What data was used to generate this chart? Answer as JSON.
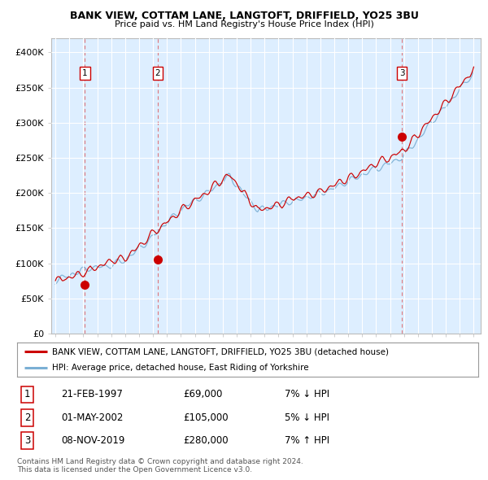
{
  "title1": "BANK VIEW, COTTAM LANE, LANGTOFT, DRIFFIELD, YO25 3BU",
  "title2": "Price paid vs. HM Land Registry's House Price Index (HPI)",
  "bg_color": "#ddeeff",
  "fig_color": "#ffffff",
  "grid_color": "#ffffff",
  "ylim": [
    0,
    420000
  ],
  "yticks": [
    0,
    50000,
    100000,
    150000,
    200000,
    250000,
    300000,
    350000,
    400000
  ],
  "ytick_labels": [
    "£0",
    "£50K",
    "£100K",
    "£150K",
    "£200K",
    "£250K",
    "£300K",
    "£350K",
    "£400K"
  ],
  "xlim_start": 1994.7,
  "xlim_end": 2025.5,
  "sale_dates": [
    1997.12,
    2002.33,
    2019.85
  ],
  "sale_prices": [
    69000,
    105000,
    280000
  ],
  "sale_labels": [
    "1",
    "2",
    "3"
  ],
  "legend_line1": "BANK VIEW, COTTAM LANE, LANGTOFT, DRIFFIELD, YO25 3BU (detached house)",
  "legend_line2": "HPI: Average price, detached house, East Riding of Yorkshire",
  "table_rows": [
    {
      "num": "1",
      "date": "21-FEB-1997",
      "price": "£69,000",
      "hpi": "7% ↓ HPI"
    },
    {
      "num": "2",
      "date": "01-MAY-2002",
      "price": "£105,000",
      "hpi": "5% ↓ HPI"
    },
    {
      "num": "3",
      "date": "08-NOV-2019",
      "price": "£280,000",
      "hpi": "7% ↑ HPI"
    }
  ],
  "footer1": "Contains HM Land Registry data © Crown copyright and database right 2024.",
  "footer2": "This data is licensed under the Open Government Licence v3.0.",
  "red_line_color": "#cc0000",
  "blue_line_color": "#7aafd4",
  "sale_dot_color": "#cc0000",
  "dashed_line_color": "#dd4444"
}
